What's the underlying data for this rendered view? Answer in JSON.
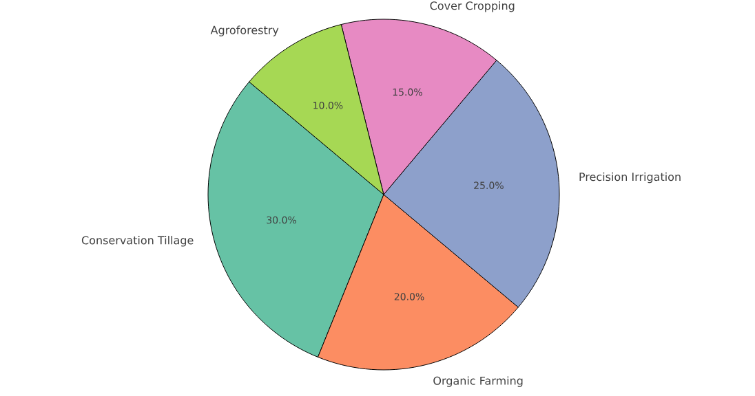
{
  "chart_data": {
    "type": "pie",
    "categories": [
      "Conservation Tillage",
      "Organic Farming",
      "Precision Irrigation",
      "Cover Cropping",
      "Agroforestry"
    ],
    "values": [
      30,
      20,
      25,
      15,
      10
    ],
    "colors": [
      "#66c2a5",
      "#fc8d62",
      "#8da0cb",
      "#e78ac3",
      "#a6d854"
    ],
    "value_labels": [
      "30.0%",
      "20.0%",
      "25.0%",
      "15.0%",
      "10.0%"
    ]
  }
}
